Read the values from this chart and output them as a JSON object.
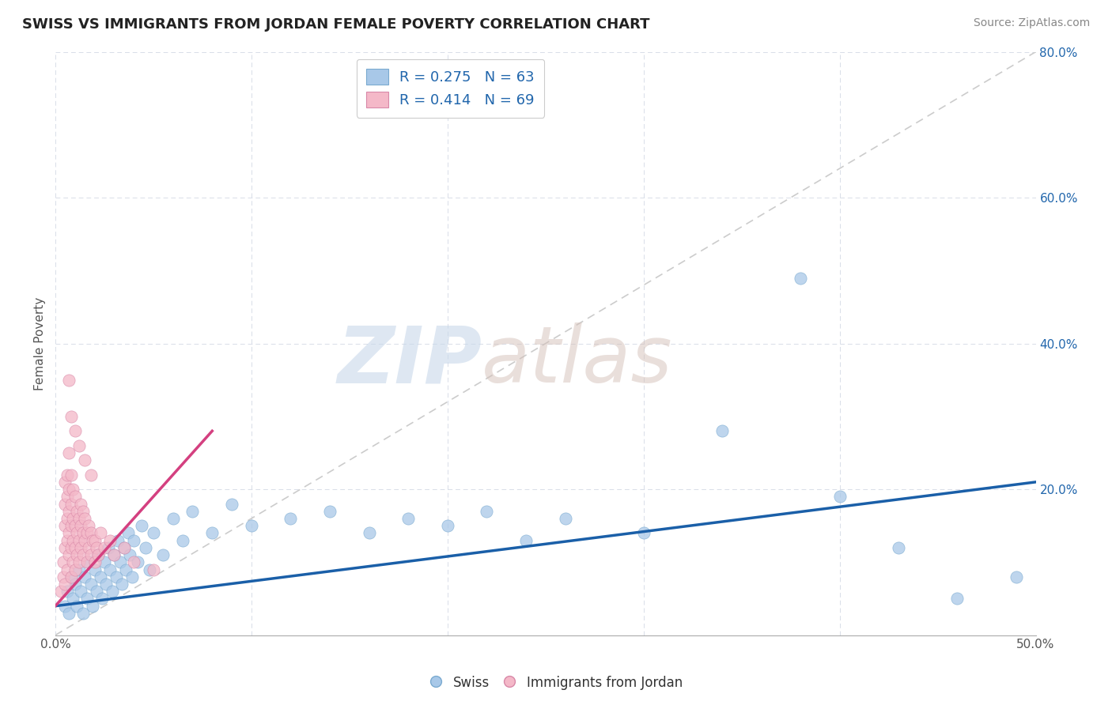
{
  "title": "SWISS VS IMMIGRANTS FROM JORDAN FEMALE POVERTY CORRELATION CHART",
  "source_text": "Source: ZipAtlas.com",
  "xlabel": "",
  "ylabel": "Female Poverty",
  "xlim": [
    0.0,
    0.5
  ],
  "ylim": [
    0.0,
    0.8
  ],
  "xticks": [
    0.0,
    0.1,
    0.2,
    0.3,
    0.4,
    0.5
  ],
  "xticklabels": [
    "0.0%",
    "",
    "",
    "",
    "",
    "50.0%"
  ],
  "yticks": [
    0.0,
    0.2,
    0.4,
    0.6,
    0.8
  ],
  "right_yticklabels": [
    "",
    "20.0%",
    "40.0%",
    "60.0%",
    "80.0%"
  ],
  "swiss_color": "#a8c8e8",
  "jordan_color": "#f4b8c8",
  "swiss_R": 0.275,
  "swiss_N": 63,
  "jordan_R": 0.414,
  "jordan_N": 69,
  "swiss_trend_color": "#1a5fa8",
  "jordan_trend_color": "#d44080",
  "diagonal_color": "#cccccc",
  "swiss_scatter": [
    [
      0.005,
      0.04
    ],
    [
      0.006,
      0.06
    ],
    [
      0.007,
      0.03
    ],
    [
      0.008,
      0.08
    ],
    [
      0.009,
      0.05
    ],
    [
      0.01,
      0.07
    ],
    [
      0.011,
      0.04
    ],
    [
      0.012,
      0.09
    ],
    [
      0.013,
      0.06
    ],
    [
      0.014,
      0.03
    ],
    [
      0.015,
      0.08
    ],
    [
      0.016,
      0.05
    ],
    [
      0.017,
      0.1
    ],
    [
      0.018,
      0.07
    ],
    [
      0.019,
      0.04
    ],
    [
      0.02,
      0.09
    ],
    [
      0.021,
      0.06
    ],
    [
      0.022,
      0.11
    ],
    [
      0.023,
      0.08
    ],
    [
      0.024,
      0.05
    ],
    [
      0.025,
      0.1
    ],
    [
      0.026,
      0.07
    ],
    [
      0.027,
      0.12
    ],
    [
      0.028,
      0.09
    ],
    [
      0.029,
      0.06
    ],
    [
      0.03,
      0.11
    ],
    [
      0.031,
      0.08
    ],
    [
      0.032,
      0.13
    ],
    [
      0.033,
      0.1
    ],
    [
      0.034,
      0.07
    ],
    [
      0.035,
      0.12
    ],
    [
      0.036,
      0.09
    ],
    [
      0.037,
      0.14
    ],
    [
      0.038,
      0.11
    ],
    [
      0.039,
      0.08
    ],
    [
      0.04,
      0.13
    ],
    [
      0.042,
      0.1
    ],
    [
      0.044,
      0.15
    ],
    [
      0.046,
      0.12
    ],
    [
      0.048,
      0.09
    ],
    [
      0.05,
      0.14
    ],
    [
      0.055,
      0.11
    ],
    [
      0.06,
      0.16
    ],
    [
      0.065,
      0.13
    ],
    [
      0.07,
      0.17
    ],
    [
      0.08,
      0.14
    ],
    [
      0.09,
      0.18
    ],
    [
      0.1,
      0.15
    ],
    [
      0.12,
      0.16
    ],
    [
      0.14,
      0.17
    ],
    [
      0.16,
      0.14
    ],
    [
      0.18,
      0.16
    ],
    [
      0.2,
      0.15
    ],
    [
      0.22,
      0.17
    ],
    [
      0.24,
      0.13
    ],
    [
      0.26,
      0.16
    ],
    [
      0.3,
      0.14
    ],
    [
      0.34,
      0.28
    ],
    [
      0.38,
      0.49
    ],
    [
      0.4,
      0.19
    ],
    [
      0.43,
      0.12
    ],
    [
      0.46,
      0.05
    ],
    [
      0.49,
      0.08
    ]
  ],
  "jordan_scatter": [
    [
      0.003,
      0.06
    ],
    [
      0.004,
      0.08
    ],
    [
      0.004,
      0.1
    ],
    [
      0.005,
      0.07
    ],
    [
      0.005,
      0.12
    ],
    [
      0.005,
      0.15
    ],
    [
      0.005,
      0.18
    ],
    [
      0.005,
      0.21
    ],
    [
      0.006,
      0.09
    ],
    [
      0.006,
      0.13
    ],
    [
      0.006,
      0.16
    ],
    [
      0.006,
      0.19
    ],
    [
      0.006,
      0.22
    ],
    [
      0.007,
      0.11
    ],
    [
      0.007,
      0.14
    ],
    [
      0.007,
      0.17
    ],
    [
      0.007,
      0.2
    ],
    [
      0.007,
      0.25
    ],
    [
      0.008,
      0.08
    ],
    [
      0.008,
      0.12
    ],
    [
      0.008,
      0.15
    ],
    [
      0.008,
      0.18
    ],
    [
      0.008,
      0.22
    ],
    [
      0.009,
      0.1
    ],
    [
      0.009,
      0.13
    ],
    [
      0.009,
      0.16
    ],
    [
      0.009,
      0.2
    ],
    [
      0.01,
      0.09
    ],
    [
      0.01,
      0.12
    ],
    [
      0.01,
      0.15
    ],
    [
      0.01,
      0.19
    ],
    [
      0.011,
      0.11
    ],
    [
      0.011,
      0.14
    ],
    [
      0.011,
      0.17
    ],
    [
      0.012,
      0.1
    ],
    [
      0.012,
      0.13
    ],
    [
      0.012,
      0.16
    ],
    [
      0.013,
      0.12
    ],
    [
      0.013,
      0.15
    ],
    [
      0.013,
      0.18
    ],
    [
      0.014,
      0.11
    ],
    [
      0.014,
      0.14
    ],
    [
      0.014,
      0.17
    ],
    [
      0.015,
      0.13
    ],
    [
      0.015,
      0.16
    ],
    [
      0.016,
      0.1
    ],
    [
      0.016,
      0.14
    ],
    [
      0.017,
      0.12
    ],
    [
      0.017,
      0.15
    ],
    [
      0.018,
      0.11
    ],
    [
      0.018,
      0.14
    ],
    [
      0.019,
      0.13
    ],
    [
      0.02,
      0.1
    ],
    [
      0.02,
      0.13
    ],
    [
      0.021,
      0.12
    ],
    [
      0.022,
      0.11
    ],
    [
      0.023,
      0.14
    ],
    [
      0.025,
      0.12
    ],
    [
      0.028,
      0.13
    ],
    [
      0.03,
      0.11
    ],
    [
      0.035,
      0.12
    ],
    [
      0.04,
      0.1
    ],
    [
      0.05,
      0.09
    ],
    [
      0.007,
      0.35
    ],
    [
      0.008,
      0.3
    ],
    [
      0.01,
      0.28
    ],
    [
      0.012,
      0.26
    ],
    [
      0.015,
      0.24
    ],
    [
      0.018,
      0.22
    ]
  ],
  "swiss_trend_x": [
    0.0,
    0.5
  ],
  "swiss_trend_y": [
    0.04,
    0.21
  ],
  "jordan_trend_x": [
    0.0,
    0.08
  ],
  "jordan_trend_y": [
    0.04,
    0.28
  ]
}
